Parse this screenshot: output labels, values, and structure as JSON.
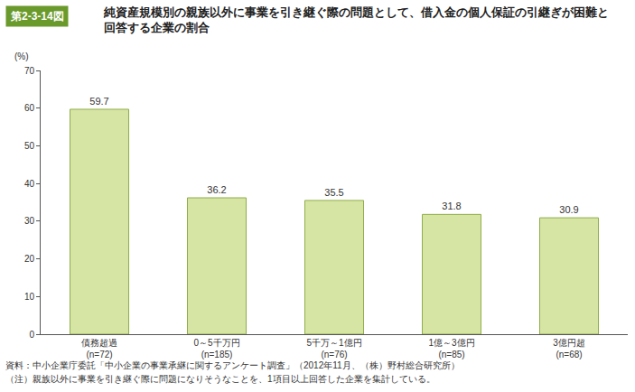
{
  "chart_data": {
    "type": "bar",
    "figure_label": "第2-3-14図",
    "title": "純資産規模別の親族以外に事業を引き継ぐ際の問題として、借入金の個人保証の引継ぎが困難と\n回答する企業の割合",
    "y_label": "(%)",
    "categories": [
      "債務超過\n(n=72)",
      "0～5千万円\n(n=185)",
      "5千万～1億円\n(n=76)",
      "1億～3億円\n(n=85)",
      "3億円超\n(n=68)"
    ],
    "values": [
      59.7,
      36.2,
      35.5,
      31.8,
      30.9
    ],
    "color": "#d6e4a4",
    "ylim": [
      0,
      70
    ],
    "yticks": [
      0,
      10,
      20,
      30,
      40,
      50,
      60,
      70
    ],
    "grid": false,
    "data_labels": true,
    "notes": [
      "資料：中小企業庁委託「中小企業の事業承継に関するアンケート調査」（2012年11月、（株）野村総合研究所）",
      "（注）親族以外に事業を引き継ぐ際に問題になりそうなことを、1項目以上回答した企業を集計している。"
    ]
  }
}
